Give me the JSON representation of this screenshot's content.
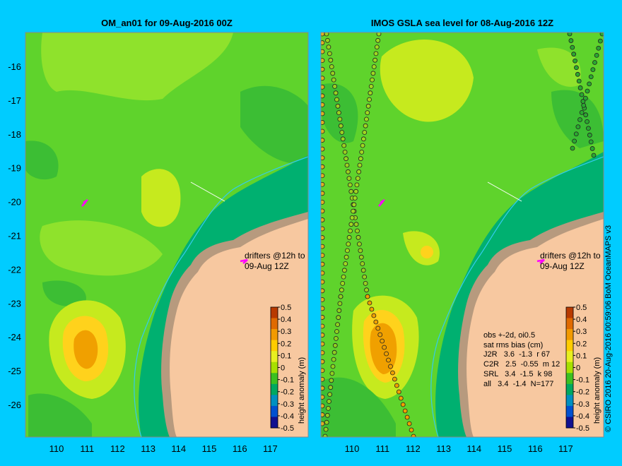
{
  "left_panel": {
    "title": "OM_an01 for 09-Aug-2016 00Z",
    "drifter_note_line1": "drifters @12h to",
    "drifter_note_line2": "09-Aug 12Z"
  },
  "right_panel": {
    "title": "IMOS GSLA sea level  for 08-Aug-2016 12Z",
    "drifter_note_line1": "drifters @12h to",
    "drifter_note_line2": "09-Aug 12Z",
    "stats_header1": "obs +-2d, oi0.5",
    "stats_header2": "sat rms bias (cm)",
    "stats_rows": [
      "J2R   3.6  -1.3  r 67",
      "C2R   2.5  -0.55  m 12",
      "SRL   3.4  -1.5  k 98",
      "all   3.4  -1.4  N=177"
    ]
  },
  "axes": {
    "lon_ticks": [
      "110",
      "111",
      "112",
      "113",
      "114",
      "115",
      "116",
      "117"
    ],
    "lat_ticks": [
      "-16",
      "-17",
      "-18",
      "-19",
      "-20",
      "-21",
      "-22",
      "-23",
      "-24",
      "-25",
      "-26"
    ]
  },
  "colorbar": {
    "title": "height anomaly (m)",
    "ticks": [
      "0.5",
      "0.4",
      "0.3",
      "0.2",
      "0.1",
      "0",
      "-0.1",
      "-0.2",
      "-0.3",
      "-0.4",
      "-0.5"
    ],
    "colors_top_to_bottom": [
      "#b83a00",
      "#e06a00",
      "#f29a00",
      "#ffcc00",
      "#e8ef20",
      "#a8e000",
      "#3cc020",
      "#00a860",
      "#0090c0",
      "#0050d0",
      "#101090"
    ]
  },
  "credit": "© CSIRO 2016   20-Aug-2016 00:59:06 BoM OceanMAPS v3",
  "map_colors": {
    "sea_base": "#5fd32c",
    "land": "#f7c8a0",
    "coast_rock": "#b79a7e",
    "shelf": "#00b070",
    "high": "#d8ef1c",
    "peak": "#f0a000",
    "drifter": "#ff00ff",
    "isobath": "#33ccee"
  }
}
